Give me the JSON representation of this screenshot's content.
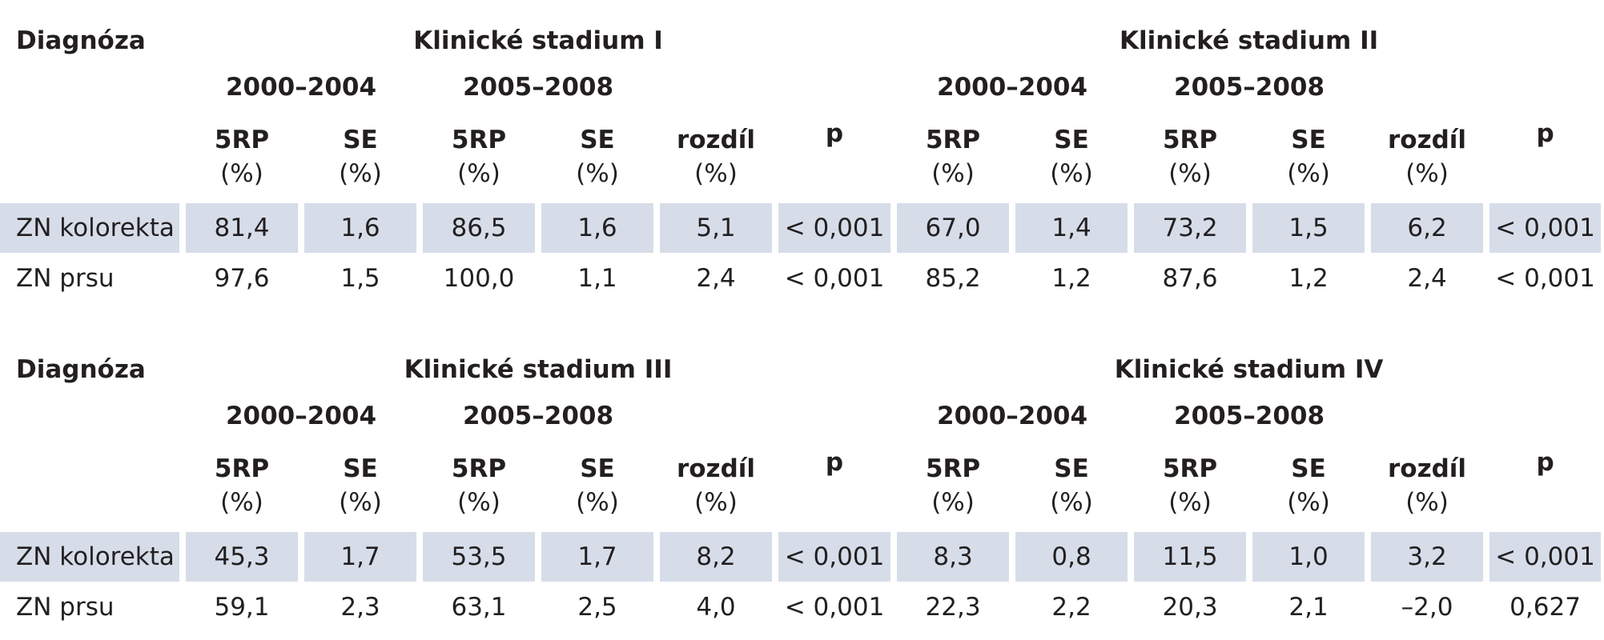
{
  "col_labels": {
    "rp5": "5RP",
    "se": "SE",
    "diff": "rozdíl",
    "p": "p",
    "pct": "(%)"
  },
  "tables": [
    {
      "diagnosis_label": "Diagnóza",
      "left_stage": "Klinické stadium I",
      "right_stage": "Klinické stadium II",
      "period_a": "2000–2004",
      "period_b": "2005–2008",
      "rows": [
        {
          "name": "ZN kolorekta",
          "values": [
            "81,4",
            "1,6",
            "86,5",
            "1,6",
            "5,1",
            "< 0,001",
            "67,0",
            "1,4",
            "73,2",
            "1,5",
            "6,2",
            "< 0,001"
          ]
        },
        {
          "name": "ZN prsu",
          "values": [
            "97,6",
            "1,5",
            "100,0",
            "1,1",
            "2,4",
            "< 0,001",
            "85,2",
            "1,2",
            "87,6",
            "1,2",
            "2,4",
            "< 0,001"
          ]
        }
      ]
    },
    {
      "diagnosis_label": "Diagnóza",
      "left_stage": "Klinické stadium III",
      "right_stage": "Klinické stadium IV",
      "period_a": "2000–2004",
      "period_b": "2005–2008",
      "rows": [
        {
          "name": "ZN kolorekta",
          "values": [
            "45,3",
            "1,7",
            "53,5",
            "1,7",
            "8,2",
            "< 0,001",
            "8,3",
            "0,8",
            "11,5",
            "1,0",
            "3,2",
            "< 0,001"
          ]
        },
        {
          "name": "ZN prsu",
          "values": [
            "59,1",
            "2,3",
            "63,1",
            "2,5",
            "4,0",
            "< 0,001",
            "22,3",
            "2,2",
            "20,3",
            "2,1",
            "–2,0",
            "0,627"
          ]
        }
      ]
    }
  ],
  "colors": {
    "shade": "#d6dde9",
    "text": "#231f20"
  }
}
